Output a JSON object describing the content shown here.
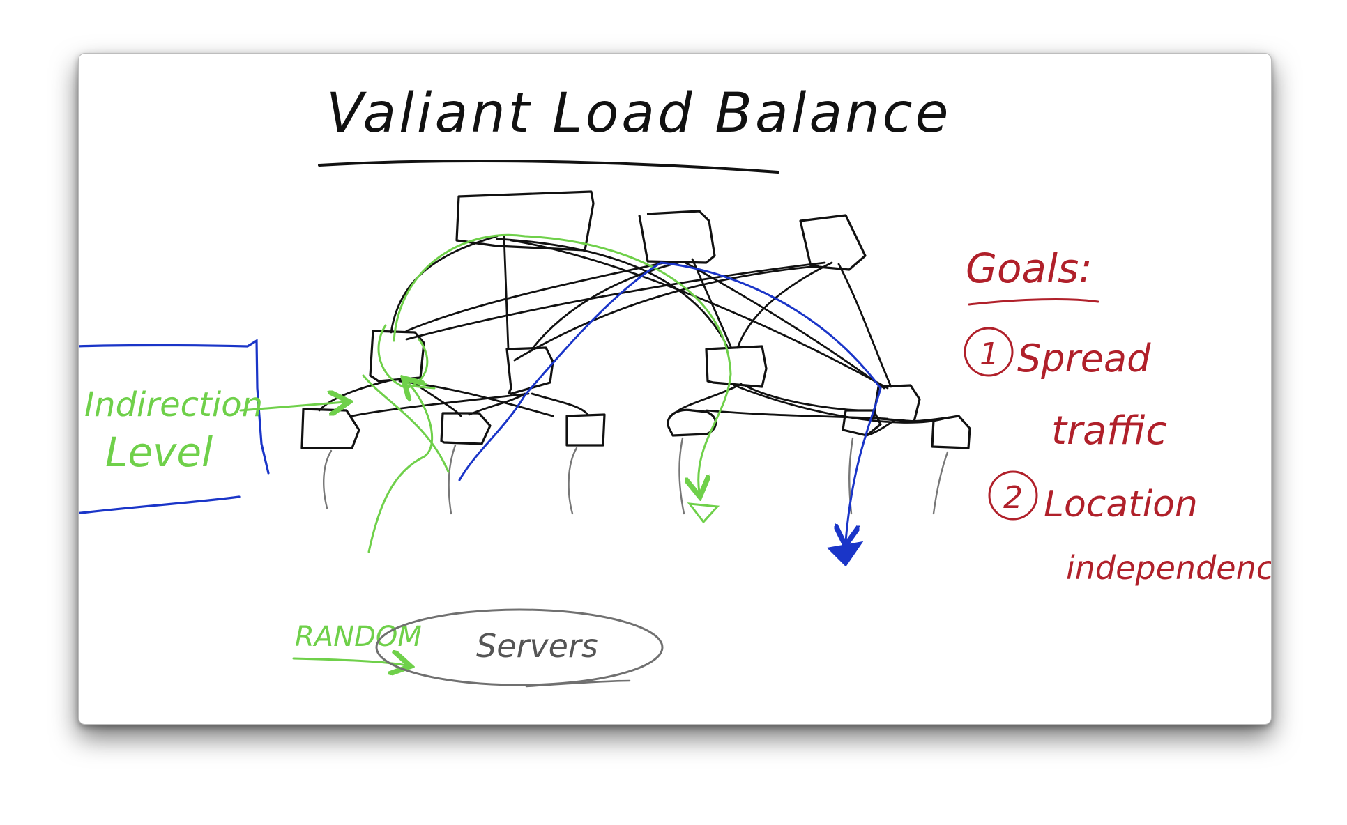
{
  "title": "Valiant Load Balance",
  "goals": {
    "heading": "Goals:",
    "items": [
      {
        "number": "1",
        "line1": "Spread",
        "line2": "traffic"
      },
      {
        "number": "2",
        "line1": "Location",
        "line2": "independence"
      }
    ]
  },
  "annotations": {
    "indirection_line1": "Indirection",
    "indirection_line2": "Level",
    "random": "RANDOM",
    "servers": "Servers"
  },
  "colors": {
    "ink": "#111111",
    "green": "#6fd04a",
    "blue": "#1a35c8",
    "red": "#b0202a",
    "gray": "#707070"
  }
}
